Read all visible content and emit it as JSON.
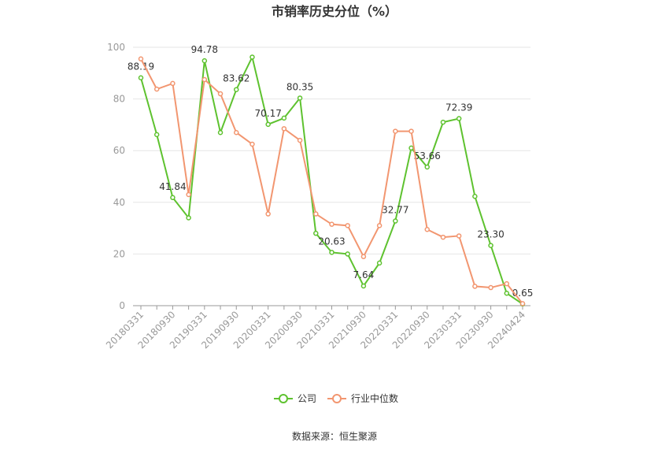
{
  "chart_data": {
    "type": "line",
    "title": "市销率历史分位（%）",
    "source": "数据来源：恒生聚源",
    "categories": [
      "20180331",
      null,
      "20180930",
      null,
      "20190331",
      null,
      "20190930",
      null,
      "20200331",
      null,
      "20200930",
      null,
      "20210331",
      null,
      "20210930",
      null,
      "20220331",
      null,
      "20220930",
      null,
      "20230331",
      null,
      "20230930",
      null,
      "20240424"
    ],
    "series": [
      {
        "name": "公司",
        "color": "#5ec22f",
        "values": [
          88.19,
          66.2,
          41.84,
          34,
          94.78,
          67,
          83.62,
          96.2,
          70.17,
          72.6,
          80.35,
          28,
          20.63,
          20,
          7.64,
          16.5,
          32.77,
          61,
          53.66,
          71,
          72.39,
          42.3,
          23.3,
          4.8,
          0.65
        ],
        "value_labels": [
          "88.19",
          null,
          "41.84",
          null,
          "94.78",
          null,
          "83.62",
          null,
          "70.17",
          null,
          "80.35",
          null,
          "20.63",
          null,
          "7.64",
          null,
          "32.77",
          null,
          "53.66",
          null,
          "72.39",
          null,
          "23.30",
          null,
          "0.65"
        ]
      },
      {
        "name": "行业中位数",
        "color": "#f29670",
        "values": [
          95.5,
          83.8,
          86,
          43,
          87.5,
          82,
          67,
          62.5,
          35.5,
          68.5,
          64,
          35.5,
          31.5,
          31,
          19,
          31,
          67.5,
          67.5,
          29.5,
          26.5,
          27,
          7.5,
          7,
          8.5,
          0.8
        ]
      }
    ],
    "ylim": [
      0,
      100
    ],
    "yticks": [
      0,
      20,
      40,
      60,
      80,
      100
    ],
    "grid": true
  }
}
